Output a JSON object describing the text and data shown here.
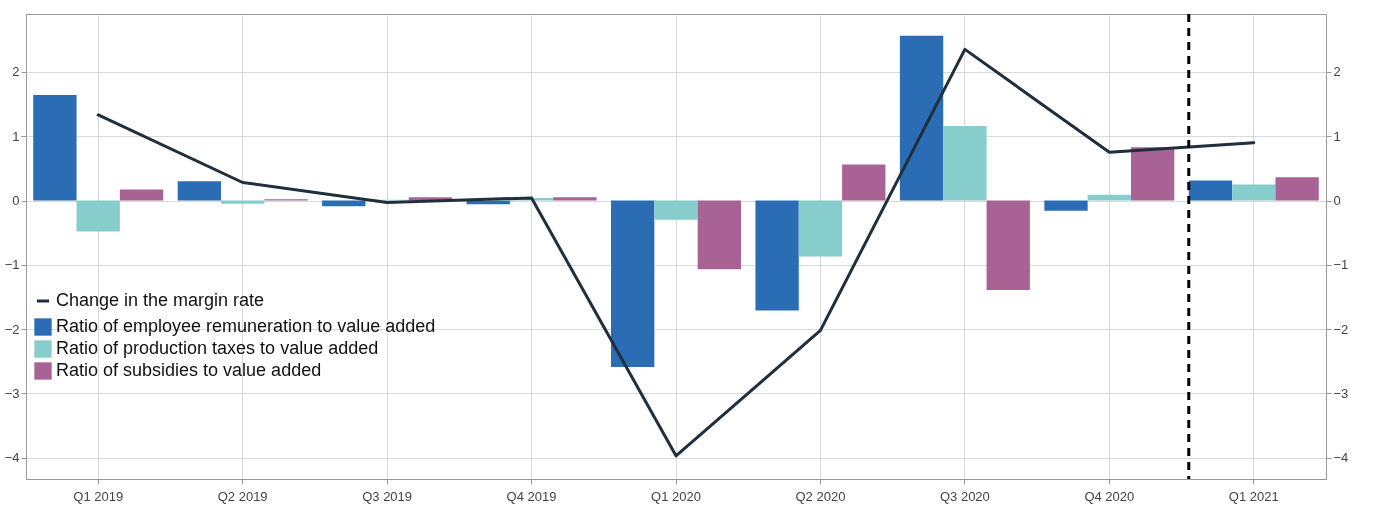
{
  "chart_data": {
    "type": "bar",
    "categories": [
      "Q1 2019",
      "Q2 2019",
      "Q3 2019",
      "Q4 2019",
      "Q1 2020",
      "Q2 2020",
      "Q3 2020",
      "Q4 2020",
      "Q1 2021"
    ],
    "series": [
      {
        "name": "Change in the margin rate",
        "type": "line",
        "color": "#1f2f3d",
        "values": [
          1.33,
          0.28,
          -0.03,
          0.04,
          -3.97,
          -2.02,
          2.35,
          0.75,
          0.9
        ]
      },
      {
        "name": "Ratio of employee remuneration to value added",
        "type": "bar",
        "color": "#2a6db5",
        "values": [
          1.64,
          0.3,
          -0.09,
          -0.06,
          -2.59,
          -1.71,
          2.56,
          -0.16,
          0.31
        ]
      },
      {
        "name": "Ratio of production taxes to value added",
        "type": "bar",
        "color": "#86cdcc",
        "values": [
          -0.48,
          -0.05,
          0.01,
          0.04,
          -0.3,
          -0.87,
          1.16,
          0.09,
          0.25
        ]
      },
      {
        "name": "Ratio of subsidies to value added",
        "type": "bar",
        "color": "#a86394",
        "values": [
          0.17,
          0.02,
          0.05,
          0.05,
          -1.07,
          0.56,
          -1.39,
          0.83,
          0.36
        ]
      }
    ],
    "ylim": [
      -4.33,
      2.9
    ],
    "yticks": [
      -4,
      -3,
      -2,
      -1,
      0,
      1,
      2
    ],
    "y2lim": [
      -4.33,
      2.9
    ],
    "y2ticks": [
      -4,
      -3,
      -2,
      -1,
      0,
      1,
      2
    ],
    "ref_lines": [
      {
        "axis": "x",
        "value": "Q1 2021",
        "color": "#000000",
        "line_style": "dashed"
      }
    ],
    "grid": true,
    "legend": "left"
  }
}
